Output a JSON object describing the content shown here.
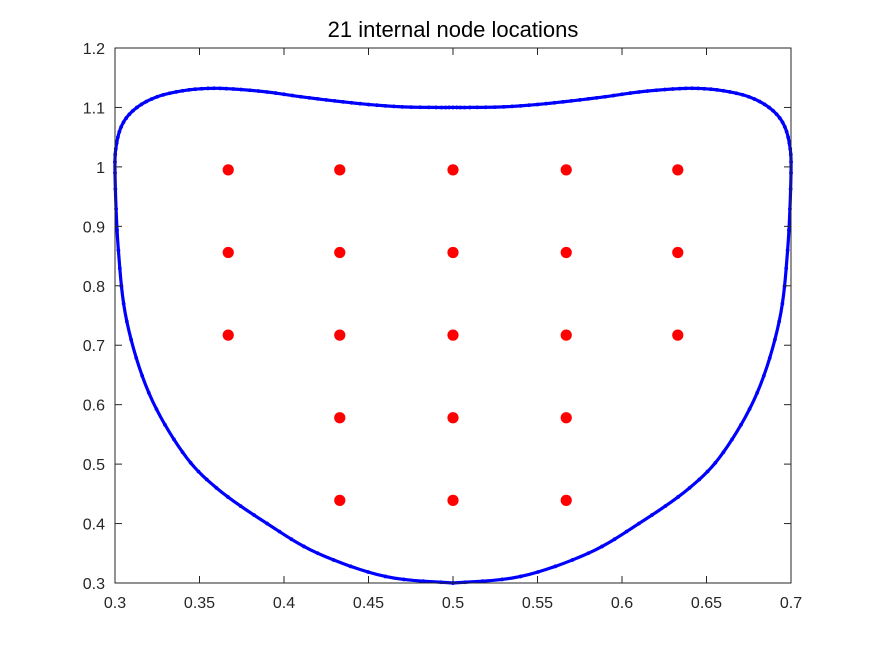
{
  "chart_data": {
    "type": "scatter",
    "title": "21 internal node locations",
    "xlabel": "",
    "ylabel": "",
    "xlim": [
      0.3,
      0.7
    ],
    "ylim": [
      0.3,
      1.2
    ],
    "xticks": [
      0.3,
      0.35,
      0.4,
      0.45,
      0.5,
      0.55,
      0.6,
      0.65,
      0.7
    ],
    "xtick_labels": [
      "0.3",
      "0.35",
      "0.4",
      "0.45",
      "0.5",
      "0.55",
      "0.6",
      "0.65",
      "0.7"
    ],
    "yticks": [
      0.3,
      0.4,
      0.5,
      0.6,
      0.7,
      0.8,
      0.9,
      1.0,
      1.1,
      1.2
    ],
    "ytick_labels": [
      "0.3",
      "0.4",
      "0.5",
      "0.6",
      "0.7",
      "0.8",
      "0.9",
      "1",
      "1.1",
      "1.2"
    ],
    "grid": false,
    "series": [
      {
        "role": "boundary",
        "color": "#0000ff",
        "marker": "dot",
        "x": [
          0.5,
          0.46,
          0.42,
          0.39,
          0.36,
          0.34,
          0.32,
          0.307,
          0.302,
          0.3,
          0.301,
          0.305,
          0.313,
          0.325,
          0.34,
          0.355,
          0.37,
          0.39,
          0.41,
          0.43,
          0.45,
          0.47,
          0.49,
          0.5,
          0.51,
          0.53,
          0.55,
          0.57,
          0.59,
          0.61,
          0.63,
          0.645,
          0.66,
          0.675,
          0.687,
          0.695,
          0.699,
          0.7,
          0.698,
          0.693,
          0.68,
          0.66,
          0.64,
          0.61,
          0.58,
          0.54,
          0.5
        ],
        "y": [
          0.3,
          0.311,
          0.35,
          0.4,
          0.46,
          0.52,
          0.62,
          0.74,
          0.86,
          0.99,
          1.04,
          1.075,
          1.1,
          1.118,
          1.128,
          1.132,
          1.131,
          1.126,
          1.118,
          1.111,
          1.105,
          1.101,
          1.1,
          1.1,
          1.1,
          1.101,
          1.105,
          1.111,
          1.118,
          1.126,
          1.131,
          1.132,
          1.128,
          1.118,
          1.1,
          1.075,
          1.04,
          0.99,
          0.86,
          0.74,
          0.62,
          0.52,
          0.46,
          0.4,
          0.35,
          0.311,
          0.3
        ]
      },
      {
        "role": "internal nodes",
        "color": "#ff0000",
        "marker": "filled-circle",
        "x": [
          0.367,
          0.433,
          0.5,
          0.567,
          0.633,
          0.367,
          0.433,
          0.5,
          0.567,
          0.633,
          0.367,
          0.433,
          0.5,
          0.567,
          0.633,
          0.433,
          0.5,
          0.567,
          0.433,
          0.5,
          0.567
        ],
        "y": [
          0.995,
          0.995,
          0.995,
          0.995,
          0.995,
          0.856,
          0.856,
          0.856,
          0.856,
          0.856,
          0.717,
          0.717,
          0.717,
          0.717,
          0.717,
          0.578,
          0.578,
          0.578,
          0.439,
          0.439,
          0.439
        ]
      }
    ]
  }
}
